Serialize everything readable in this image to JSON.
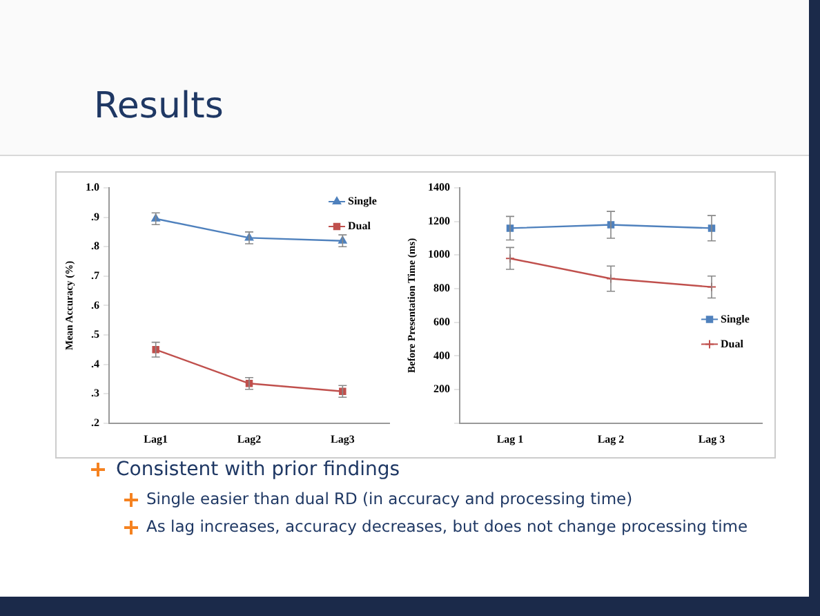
{
  "chart_data": [
    {
      "type": "other",
      "title": "Results"
    },
    {
      "type": "line",
      "ylabel": "Mean Accuracy (%)",
      "categories": [
        "Lag1",
        "Lag2",
        "Lag3"
      ],
      "ylim": [
        0.2,
        1.0
      ],
      "yticks": [
        {
          "value": 0.2,
          "label": ".2"
        },
        {
          "value": 0.3,
          "label": ".3"
        },
        {
          "value": 0.4,
          "label": ".4"
        },
        {
          "value": 0.5,
          "label": ".5"
        },
        {
          "value": 0.6,
          "label": ".6"
        },
        {
          "value": 0.7,
          "label": ".7"
        },
        {
          "value": 0.8,
          "label": ".8"
        },
        {
          "value": 0.9,
          "label": ".9"
        },
        {
          "value": 1.0,
          "label": "1.0"
        }
      ],
      "grid": false,
      "legend": "top right",
      "series": [
        {
          "name": "Single",
          "color": "#4f81bd",
          "marker": "triangle",
          "values": [
            0.895,
            0.83,
            0.82
          ],
          "errors": [
            0.02,
            0.02,
            0.02
          ]
        },
        {
          "name": "Dual",
          "color": "#c0504d",
          "marker": "square",
          "values": [
            0.45,
            0.335,
            0.308
          ],
          "errors": [
            0.025,
            0.02,
            0.02
          ]
        }
      ]
    },
    {
      "type": "line",
      "ylabel": "Before Presentation Time (ms)",
      "categories": [
        "Lag 1",
        "Lag 2",
        "Lag 3"
      ],
      "ylim": [
        0,
        1400
      ],
      "yticks": [
        {
          "value": 0,
          "label": null
        },
        200,
        400,
        600,
        800,
        1000,
        1200,
        1400
      ],
      "grid": false,
      "legend": "right",
      "series": [
        {
          "name": "Single",
          "color": "#4f81bd",
          "marker": "square",
          "values": [
            1160,
            1180,
            1160
          ],
          "errors": [
            70,
            80,
            75
          ]
        },
        {
          "name": "Dual",
          "color": "#c0504d",
          "marker": "cross",
          "values": [
            980,
            860,
            810
          ],
          "errors": [
            65,
            75,
            65
          ]
        }
      ]
    },
    {
      "type": "other",
      "annotations": [
        "Consistent with prior findings",
        "Single easier than dual RD (in accuracy and processing time)",
        "As lag increases, accuracy decreases, but does not change processing time"
      ]
    }
  ]
}
